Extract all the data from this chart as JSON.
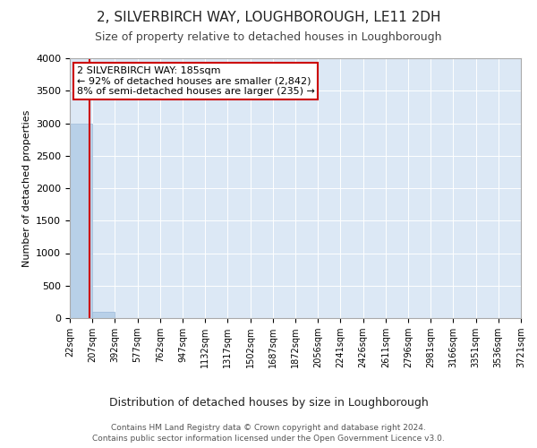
{
  "title": "2, SILVERBIRCH WAY, LOUGHBOROUGH, LE11 2DH",
  "subtitle": "Size of property relative to detached houses in Loughborough",
  "xlabel": "Distribution of detached houses by size in Loughborough",
  "ylabel": "Number of detached properties",
  "ylim": [
    0,
    4000
  ],
  "bin_edges": [
    22,
    207,
    392,
    577,
    762,
    947,
    1132,
    1317,
    1502,
    1687,
    1872,
    2056,
    2241,
    2426,
    2611,
    2796,
    2981,
    3166,
    3351,
    3536,
    3721
  ],
  "bar_heights": [
    2990,
    100,
    5,
    2,
    1,
    1,
    0,
    0,
    0,
    0,
    0,
    0,
    0,
    0,
    0,
    0,
    0,
    0,
    0,
    0
  ],
  "bar_color": "#b8d0e8",
  "bar_edge_color": "#9ab8d8",
  "property_size": 185,
  "vline_color": "#cc0000",
  "annotation_text": "2 SILVERBIRCH WAY: 185sqm\n← 92% of detached houses are smaller (2,842)\n8% of semi-detached houses are larger (235) →",
  "annotation_box_edgecolor": "#cc0000",
  "annotation_text_color": "#000000",
  "annotation_fontsize": 8,
  "background_color": "#dce8f5",
  "figure_bg": "#ffffff",
  "footer_line1": "Contains HM Land Registry data © Crown copyright and database right 2024.",
  "footer_line2": "Contains public sector information licensed under the Open Government Licence v3.0.",
  "tick_labels": [
    "22sqm",
    "207sqm",
    "392sqm",
    "577sqm",
    "762sqm",
    "947sqm",
    "1132sqm",
    "1317sqm",
    "1502sqm",
    "1687sqm",
    "1872sqm",
    "2056sqm",
    "2241sqm",
    "2426sqm",
    "2611sqm",
    "2796sqm",
    "2981sqm",
    "3166sqm",
    "3351sqm",
    "3536sqm",
    "3721sqm"
  ],
  "title_fontsize": 11,
  "subtitle_fontsize": 9,
  "ylabel_fontsize": 8,
  "xlabel_fontsize": 9,
  "ytick_fontsize": 8,
  "xtick_fontsize": 7
}
